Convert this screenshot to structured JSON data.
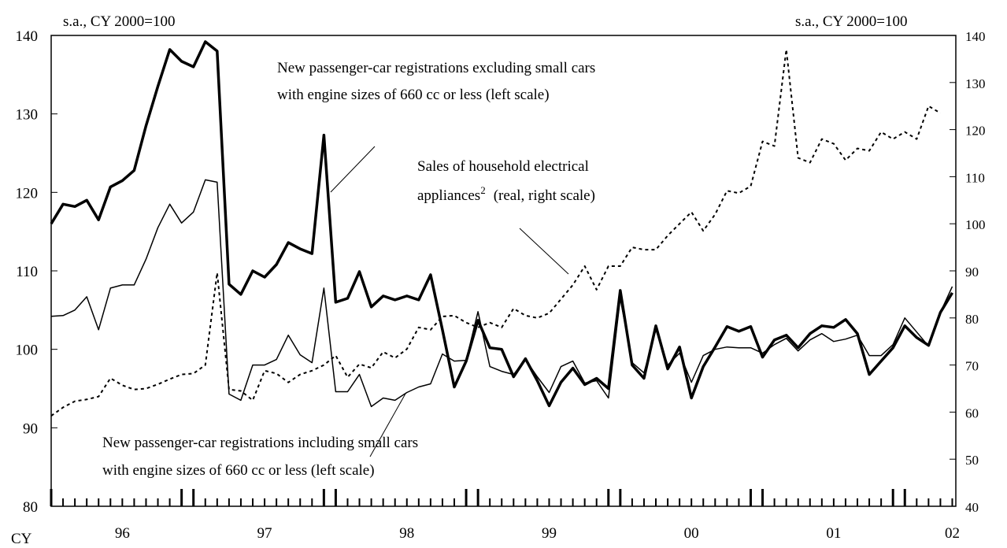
{
  "chart_data": {
    "type": "line",
    "left_axis_label": "s.a., CY 2000=100",
    "right_axis_label": "s.a., CY 2000=100",
    "x_axis_label": "CY",
    "x": [
      0,
      1,
      2,
      3,
      4,
      5,
      6,
      7,
      8,
      9,
      10,
      11,
      12,
      13,
      14,
      15,
      16,
      17,
      18,
      19,
      20,
      21,
      22,
      23,
      24,
      25,
      26,
      27,
      28,
      29,
      30,
      31,
      32,
      33,
      34,
      35,
      36,
      37,
      38,
      39,
      40,
      41,
      42,
      43,
      44,
      45,
      46,
      47,
      48,
      49,
      50,
      51,
      52,
      53,
      54,
      55,
      56,
      57,
      58,
      59,
      60,
      61,
      62,
      63,
      64,
      65,
      66,
      67,
      68,
      69,
      70,
      71,
      72,
      73,
      74,
      75,
      76
    ],
    "xlim": [
      0,
      76.3
    ],
    "xticks": [
      {
        "value": 6,
        "label": "96"
      },
      {
        "value": 18,
        "label": "97"
      },
      {
        "value": 30,
        "label": "98"
      },
      {
        "value": 42,
        "label": "99"
      },
      {
        "value": 54,
        "label": "00"
      },
      {
        "value": 66,
        "label": "01"
      },
      {
        "value": 76,
        "label": "02"
      }
    ],
    "ylim": [
      80,
      140
    ],
    "yticks": [
      80,
      90,
      100,
      110,
      120,
      130,
      140
    ],
    "y2lim": [
      40,
      140
    ],
    "y2ticks": [
      40,
      50,
      60,
      70,
      80,
      90,
      100,
      110,
      120,
      130,
      140
    ],
    "series": [
      {
        "name": "New passenger-car registrations excluding small cars with engine sizes of 660 cc or less (left scale)",
        "color": "#000000",
        "style": "thick",
        "values": [
          116.0,
          118.5,
          118.2,
          119.0,
          116.5,
          120.7,
          121.5,
          122.8,
          128.5,
          133.5,
          138.2,
          136.7,
          136.0,
          139.2,
          138.0,
          108.3,
          107.0,
          110.0,
          109.2,
          110.8,
          113.6,
          112.8,
          112.2,
          127.3,
          106.0,
          106.5,
          109.9,
          105.4,
          106.8,
          106.3,
          106.8,
          106.3,
          109.5,
          102.5,
          95.2,
          98.5,
          103.7,
          100.2,
          100.0,
          96.5,
          98.8,
          96.0,
          92.8,
          95.8,
          97.6,
          95.5,
          96.3,
          95.0,
          107.5,
          98.0,
          96.3,
          103.0,
          97.5,
          100.3,
          93.8,
          97.8,
          100.3,
          102.9,
          102.3,
          102.9,
          99.0,
          101.2,
          101.8,
          100.2,
          102.0,
          103.0,
          102.8,
          103.8,
          102.0,
          96.8,
          98.5,
          100.2,
          103.0,
          101.5,
          100.5,
          104.7,
          107.2
        ]
      },
      {
        "name": "New passenger-car registrations including small cars with engine sizes of 660 cc or less (left scale)",
        "color": "#000000",
        "style": "thin",
        "values": [
          104.2,
          104.3,
          105.0,
          106.7,
          102.5,
          107.8,
          108.2,
          108.2,
          111.5,
          115.5,
          118.5,
          116.1,
          117.5,
          121.6,
          121.3,
          94.3,
          93.5,
          98.0,
          98.0,
          98.7,
          101.8,
          99.3,
          98.3,
          107.8,
          94.6,
          94.6,
          96.8,
          92.7,
          93.8,
          93.5,
          94.5,
          95.2,
          95.6,
          99.4,
          98.5,
          98.6,
          104.8,
          97.8,
          97.2,
          96.8,
          98.7,
          96.5,
          94.5,
          97.8,
          98.5,
          95.7,
          96.0,
          93.8,
          106.5,
          98.3,
          97.0,
          102.5,
          98.0,
          99.5,
          95.8,
          99.2,
          100.0,
          100.3,
          100.2,
          100.2,
          99.5,
          100.6,
          101.4,
          99.8,
          101.2,
          102.0,
          101.0,
          101.3,
          101.8,
          99.2,
          99.2,
          100.6,
          104.0,
          102.2,
          100.4,
          104.7,
          108.0
        ]
      },
      {
        "name": "Sales of household electrical appliances (real, right scale)",
        "color": "#000000",
        "style": "dotted",
        "axis": "y2",
        "values": [
          59.2,
          61.0,
          62.3,
          62.7,
          63.3,
          67.2,
          65.7,
          64.8,
          65.0,
          65.9,
          67.0,
          68.0,
          68.2,
          70.0,
          89.6,
          64.8,
          64.5,
          62.5,
          68.8,
          68.2,
          66.3,
          68.0,
          68.8,
          70.0,
          72.0,
          67.4,
          70.2,
          69.4,
          72.8,
          71.5,
          73.4,
          78.0,
          77.5,
          80.3,
          80.5,
          79.0,
          78.0,
          79.0,
          78.0,
          82.0,
          80.5,
          80.0,
          81.0,
          84.0,
          87.0,
          91.0,
          86.0,
          91.0,
          91.0,
          95.0,
          94.5,
          94.5,
          97.5,
          100.0,
          102.5,
          98.5,
          102.0,
          107.0,
          106.5,
          108.0,
          117.5,
          116.5,
          137.0,
          114.0,
          113.0,
          118.0,
          117.0,
          113.5,
          116.0,
          115.5,
          119.5,
          118.0,
          119.5,
          118.0,
          125.0,
          123.5,
          null
        ]
      }
    ],
    "annotations": [
      {
        "lines": [
          "New passenger-car registrations excluding small cars",
          "with engine sizes of 660 cc or less (left scale)"
        ]
      },
      {
        "lines": [
          "Sales of household electrical",
          "appliances"
        ],
        "superscript": "2",
        "suffix": "(real, right scale)"
      },
      {
        "lines": [
          "New passenger-car registrations including small cars",
          "with engine sizes of 660 cc or less (left scale)"
        ]
      }
    ]
  }
}
